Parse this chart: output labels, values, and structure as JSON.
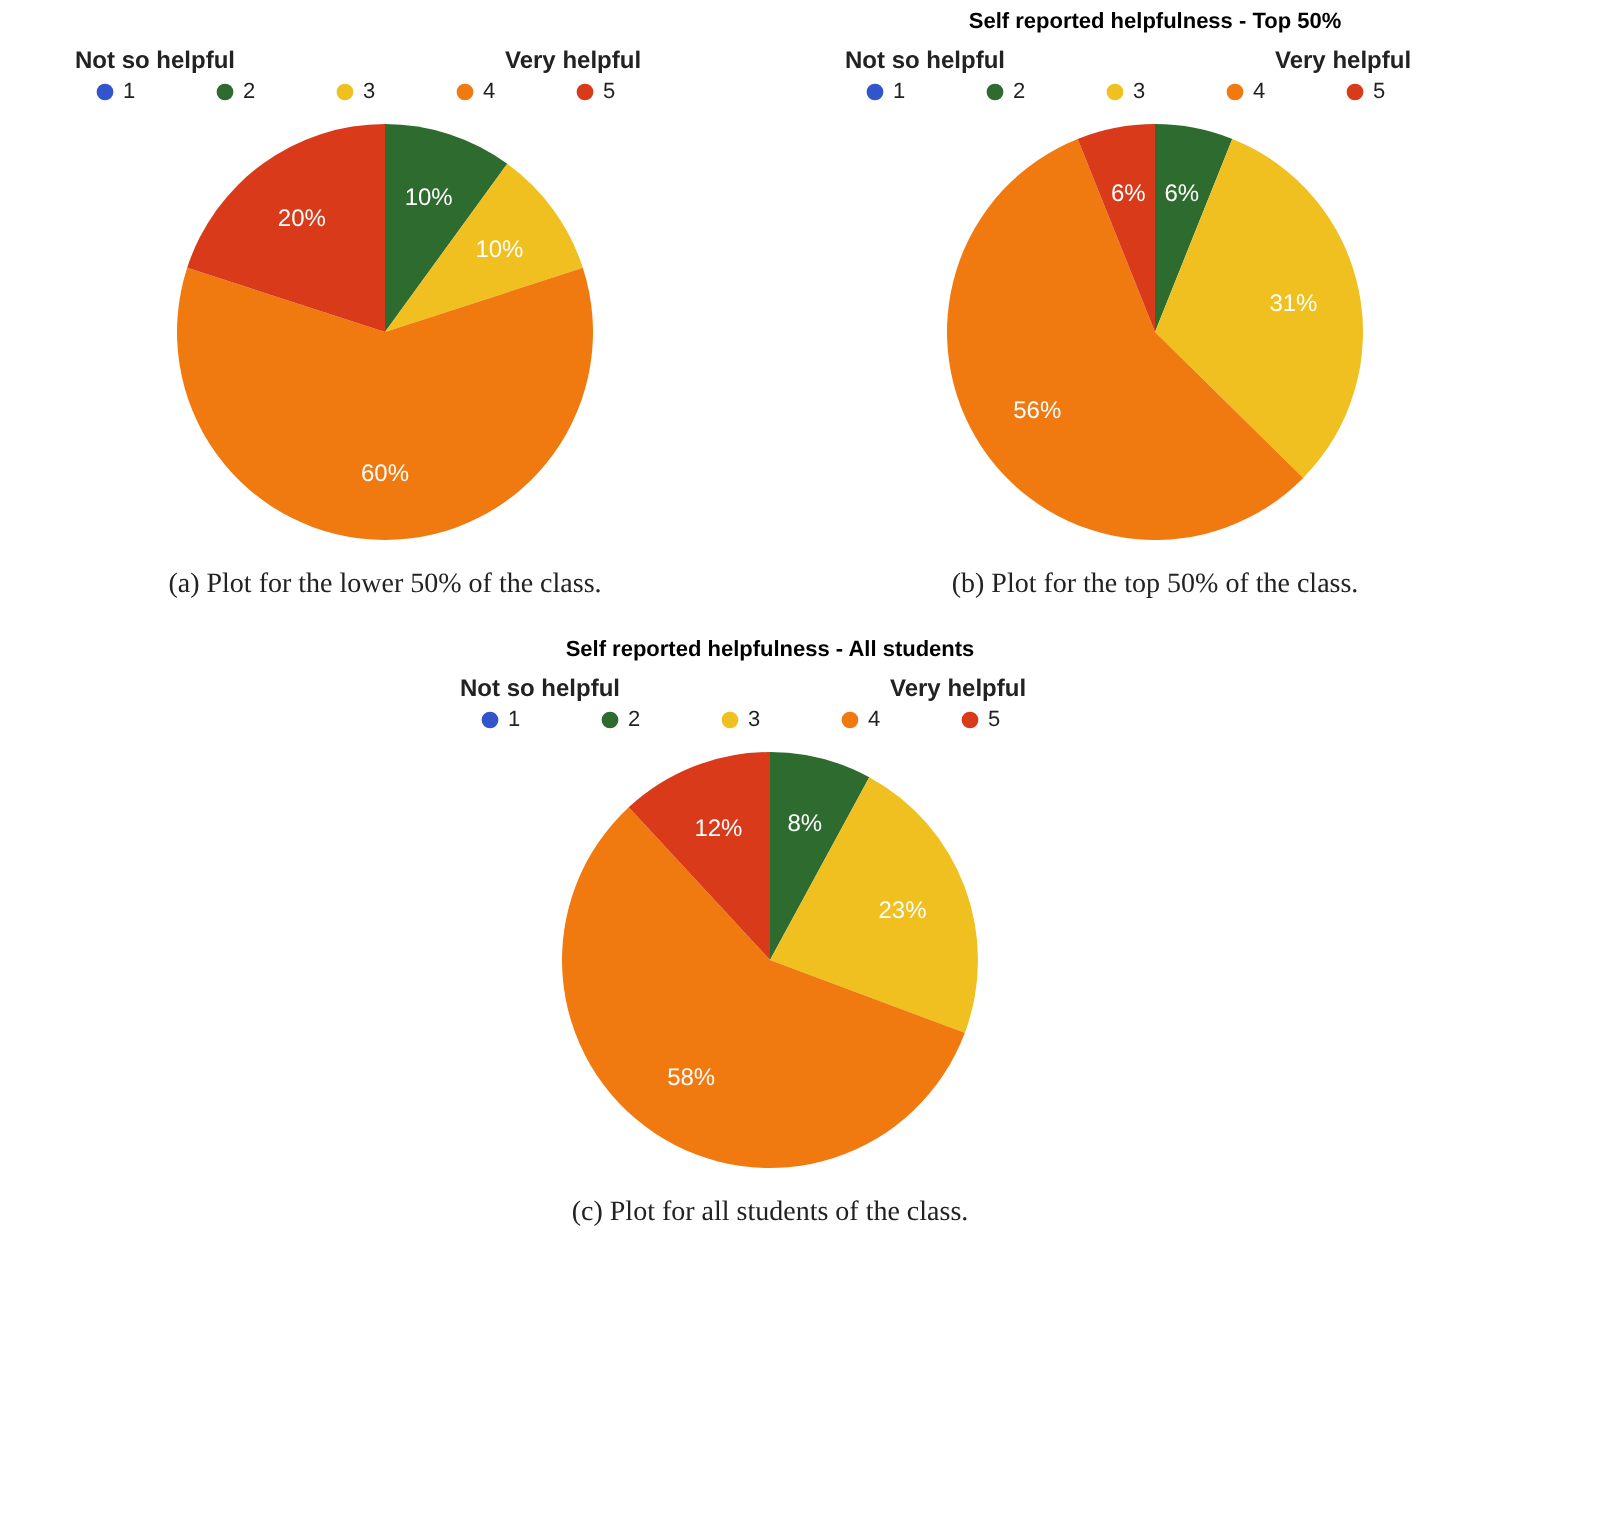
{
  "chart_data": [
    {
      "type": "pie",
      "categories": [
        "1",
        "2",
        "3",
        "4",
        "5"
      ],
      "values": [
        0,
        10,
        10,
        60,
        20
      ],
      "colors": [
        "#3355cc",
        "#2e6b2e",
        "#f0c020",
        "#f07a10",
        "#d83a1a"
      ],
      "value_labels": [
        null,
        "10%",
        "10%",
        "60%",
        "20%"
      ],
      "legend": "top",
      "annotations": [
        "Not so helpful",
        "Very helpful",
        "(a) Plot for the lower 50% of the class."
      ]
    },
    {
      "type": "pie",
      "title": "Self reported helpfulness - Top 50%",
      "categories": [
        "1",
        "2",
        "3",
        "4",
        "5"
      ],
      "values": [
        0,
        6,
        31,
        56,
        6
      ],
      "colors": [
        "#3355cc",
        "#2e6b2e",
        "#f0c020",
        "#f07a10",
        "#d83a1a"
      ],
      "value_labels": [
        null,
        "6%",
        "31%",
        "56%",
        "6%"
      ],
      "legend": "top",
      "annotations": [
        "Not so helpful",
        "Very helpful",
        "(b) Plot for the top 50% of the class."
      ]
    },
    {
      "type": "pie",
      "title": "Self reported helpfulness - All students",
      "categories": [
        "1",
        "2",
        "3",
        "4",
        "5"
      ],
      "values": [
        0,
        8,
        23,
        58,
        12
      ],
      "colors": [
        "#3355cc",
        "#2e6b2e",
        "#f0c020",
        "#f07a10",
        "#d83a1a"
      ],
      "value_labels": [
        null,
        "8%",
        "23%",
        "58%",
        "12%"
      ],
      "legend": "top",
      "annotations": [
        "Not so helpful",
        "Very helpful",
        "(c) Plot for all students of the class."
      ]
    }
  ]
}
